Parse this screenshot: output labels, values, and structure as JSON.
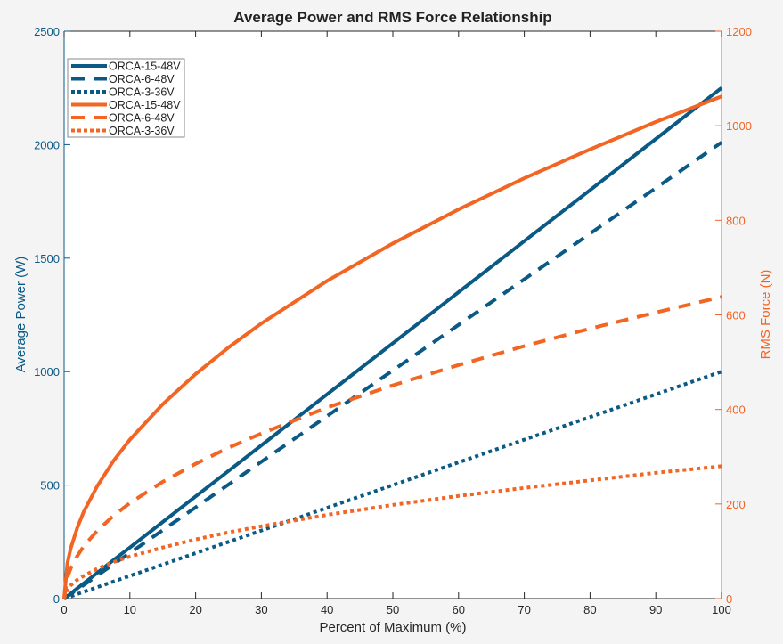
{
  "chart_data": {
    "type": "line",
    "title": "Average Power and RMS Force Relationship",
    "xlabel": "Percent of Maximum (%)",
    "ylabel_left": "Average Power (W)",
    "ylabel_right": "RMS Force (N)",
    "xlim": [
      0,
      100
    ],
    "ylim_left": [
      0,
      2500
    ],
    "ylim_right": [
      0,
      1200
    ],
    "xticks": [
      0,
      10,
      20,
      30,
      40,
      50,
      60,
      70,
      80,
      90,
      100
    ],
    "yticks_left": [
      0,
      500,
      1000,
      1500,
      2000,
      2500
    ],
    "yticks_right": [
      0,
      200,
      400,
      600,
      800,
      1000,
      1200
    ],
    "grid": false,
    "legend_position": "top-left",
    "colors": {
      "power": "#0b5a86",
      "force": "#f26522"
    },
    "x": [
      0,
      0.5,
      1,
      2,
      3,
      5,
      7.5,
      10,
      15,
      20,
      25,
      30,
      40,
      50,
      60,
      70,
      80,
      90,
      100
    ],
    "series": [
      {
        "name": "ORCA-15-48V",
        "axis": "left",
        "style": "solid",
        "values": [
          0,
          11,
          22.5,
          45,
          67.5,
          112.5,
          169,
          225,
          337.5,
          450,
          562.5,
          675,
          900,
          1125,
          1350,
          1575,
          1800,
          2025,
          2250
        ]
      },
      {
        "name": "ORCA-6-48V",
        "axis": "left",
        "style": "dashed",
        "values": [
          0,
          10,
          20,
          40,
          60,
          100.5,
          151,
          201,
          301.5,
          402,
          502.5,
          603,
          804,
          1005,
          1206,
          1407,
          1608,
          1809,
          2010
        ]
      },
      {
        "name": "ORCA-3-36V",
        "axis": "left",
        "style": "dotted",
        "values": [
          0,
          5,
          10,
          20,
          30,
          50,
          75,
          100,
          150,
          200,
          250,
          300,
          400,
          500,
          600,
          700,
          800,
          900,
          1000
        ]
      },
      {
        "name": "ORCA-15-48V",
        "axis": "right",
        "style": "solid",
        "values": [
          0,
          75,
          106,
          150,
          184,
          237,
          291,
          336,
          411,
          475,
          531,
          582,
          672,
          751,
          823,
          889,
          950,
          1008,
          1062
        ]
      },
      {
        "name": "ORCA-6-48V",
        "axis": "right",
        "style": "dashed",
        "values": [
          0,
          45,
          64,
          90,
          111,
          143,
          175,
          202,
          247,
          285,
          319,
          349,
          404,
          451,
          494,
          534,
          571,
          605,
          638
        ]
      },
      {
        "name": "ORCA-3-36V",
        "axis": "right",
        "style": "dotted",
        "values": [
          0,
          20,
          28,
          40,
          48,
          63,
          77,
          89,
          108,
          125,
          140,
          153,
          177,
          198,
          217,
          234,
          250,
          266,
          280
        ]
      }
    ]
  }
}
